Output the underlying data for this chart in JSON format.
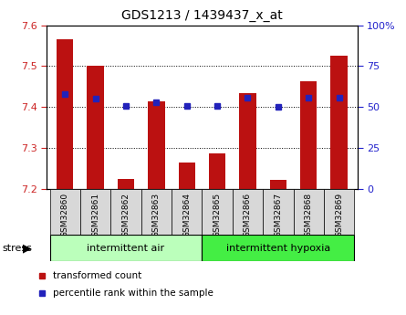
{
  "title": "GDS1213 / 1439437_x_at",
  "samples": [
    "GSM32860",
    "GSM32861",
    "GSM32862",
    "GSM32863",
    "GSM32864",
    "GSM32865",
    "GSM32866",
    "GSM32867",
    "GSM32868",
    "GSM32869"
  ],
  "bar_values": [
    7.565,
    7.502,
    7.225,
    7.415,
    7.265,
    7.286,
    7.435,
    7.222,
    7.462,
    7.525
  ],
  "percentile_values": [
    58,
    55,
    51,
    53,
    51,
    51,
    56,
    50,
    56,
    56
  ],
  "ymin": 7.2,
  "ymax": 7.6,
  "bar_color": "#bb1111",
  "dot_color": "#2222bb",
  "left_group_label": "intermittent air",
  "right_group_label": "intermittent hypoxia",
  "stress_label": "stress",
  "group_split": 5,
  "legend1": "transformed count",
  "legend2": "percentile rank within the sample",
  "left_group_color": "#bbffbb",
  "right_group_color": "#44ee44",
  "tick_label_color_left": "#cc2222",
  "tick_label_color_right": "#2222cc",
  "sample_bg_color": "#d8d8d8",
  "yticks_left": [
    7.2,
    7.3,
    7.4,
    7.5,
    7.6
  ],
  "yticks_right": [
    0,
    25,
    50,
    75,
    100
  ]
}
